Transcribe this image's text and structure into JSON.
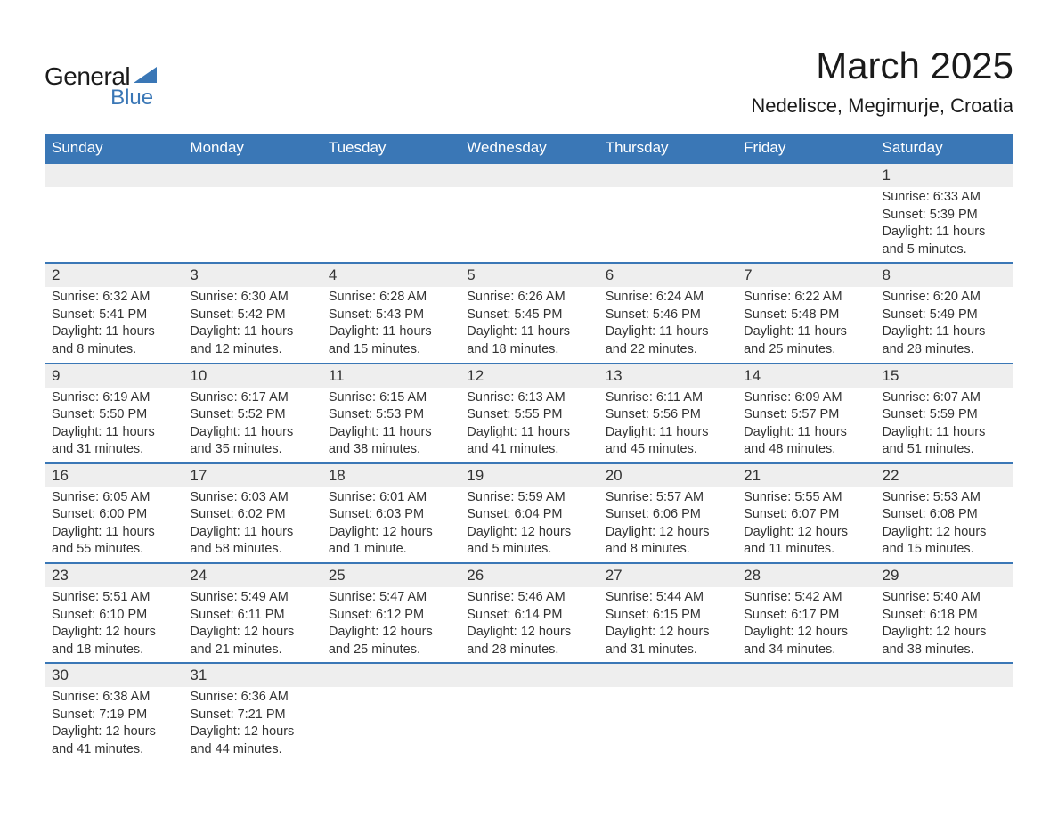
{
  "logo": {
    "text1": "General",
    "text2": "Blue",
    "triangle_color": "#3a77b6"
  },
  "title": "March 2025",
  "location": "Nedelisce, Megimurje, Croatia",
  "colors": {
    "header_bg": "#3a77b6",
    "header_fg": "#ffffff",
    "daynum_bg": "#eeeeee",
    "rule": "#3a77b6",
    "text": "#333333",
    "page_bg": "#ffffff"
  },
  "typography": {
    "title_fontsize": 42,
    "location_fontsize": 22,
    "dayheader_fontsize": 17,
    "daynum_fontsize": 17,
    "detail_fontsize": 14.5
  },
  "day_headers": [
    "Sunday",
    "Monday",
    "Tuesday",
    "Wednesday",
    "Thursday",
    "Friday",
    "Saturday"
  ],
  "weeks": [
    [
      null,
      null,
      null,
      null,
      null,
      null,
      {
        "n": "1",
        "sr": "6:33 AM",
        "ss": "5:39 PM",
        "dl": "11 hours and 5 minutes."
      }
    ],
    [
      {
        "n": "2",
        "sr": "6:32 AM",
        "ss": "5:41 PM",
        "dl": "11 hours and 8 minutes."
      },
      {
        "n": "3",
        "sr": "6:30 AM",
        "ss": "5:42 PM",
        "dl": "11 hours and 12 minutes."
      },
      {
        "n": "4",
        "sr": "6:28 AM",
        "ss": "5:43 PM",
        "dl": "11 hours and 15 minutes."
      },
      {
        "n": "5",
        "sr": "6:26 AM",
        "ss": "5:45 PM",
        "dl": "11 hours and 18 minutes."
      },
      {
        "n": "6",
        "sr": "6:24 AM",
        "ss": "5:46 PM",
        "dl": "11 hours and 22 minutes."
      },
      {
        "n": "7",
        "sr": "6:22 AM",
        "ss": "5:48 PM",
        "dl": "11 hours and 25 minutes."
      },
      {
        "n": "8",
        "sr": "6:20 AM",
        "ss": "5:49 PM",
        "dl": "11 hours and 28 minutes."
      }
    ],
    [
      {
        "n": "9",
        "sr": "6:19 AM",
        "ss": "5:50 PM",
        "dl": "11 hours and 31 minutes."
      },
      {
        "n": "10",
        "sr": "6:17 AM",
        "ss": "5:52 PM",
        "dl": "11 hours and 35 minutes."
      },
      {
        "n": "11",
        "sr": "6:15 AM",
        "ss": "5:53 PM",
        "dl": "11 hours and 38 minutes."
      },
      {
        "n": "12",
        "sr": "6:13 AM",
        "ss": "5:55 PM",
        "dl": "11 hours and 41 minutes."
      },
      {
        "n": "13",
        "sr": "6:11 AM",
        "ss": "5:56 PM",
        "dl": "11 hours and 45 minutes."
      },
      {
        "n": "14",
        "sr": "6:09 AM",
        "ss": "5:57 PM",
        "dl": "11 hours and 48 minutes."
      },
      {
        "n": "15",
        "sr": "6:07 AM",
        "ss": "5:59 PM",
        "dl": "11 hours and 51 minutes."
      }
    ],
    [
      {
        "n": "16",
        "sr": "6:05 AM",
        "ss": "6:00 PM",
        "dl": "11 hours and 55 minutes."
      },
      {
        "n": "17",
        "sr": "6:03 AM",
        "ss": "6:02 PM",
        "dl": "11 hours and 58 minutes."
      },
      {
        "n": "18",
        "sr": "6:01 AM",
        "ss": "6:03 PM",
        "dl": "12 hours and 1 minute."
      },
      {
        "n": "19",
        "sr": "5:59 AM",
        "ss": "6:04 PM",
        "dl": "12 hours and 5 minutes."
      },
      {
        "n": "20",
        "sr": "5:57 AM",
        "ss": "6:06 PM",
        "dl": "12 hours and 8 minutes."
      },
      {
        "n": "21",
        "sr": "5:55 AM",
        "ss": "6:07 PM",
        "dl": "12 hours and 11 minutes."
      },
      {
        "n": "22",
        "sr": "5:53 AM",
        "ss": "6:08 PM",
        "dl": "12 hours and 15 minutes."
      }
    ],
    [
      {
        "n": "23",
        "sr": "5:51 AM",
        "ss": "6:10 PM",
        "dl": "12 hours and 18 minutes."
      },
      {
        "n": "24",
        "sr": "5:49 AM",
        "ss": "6:11 PM",
        "dl": "12 hours and 21 minutes."
      },
      {
        "n": "25",
        "sr": "5:47 AM",
        "ss": "6:12 PM",
        "dl": "12 hours and 25 minutes."
      },
      {
        "n": "26",
        "sr": "5:46 AM",
        "ss": "6:14 PM",
        "dl": "12 hours and 28 minutes."
      },
      {
        "n": "27",
        "sr": "5:44 AM",
        "ss": "6:15 PM",
        "dl": "12 hours and 31 minutes."
      },
      {
        "n": "28",
        "sr": "5:42 AM",
        "ss": "6:17 PM",
        "dl": "12 hours and 34 minutes."
      },
      {
        "n": "29",
        "sr": "5:40 AM",
        "ss": "6:18 PM",
        "dl": "12 hours and 38 minutes."
      }
    ],
    [
      {
        "n": "30",
        "sr": "6:38 AM",
        "ss": "7:19 PM",
        "dl": "12 hours and 41 minutes."
      },
      {
        "n": "31",
        "sr": "6:36 AM",
        "ss": "7:21 PM",
        "dl": "12 hours and 44 minutes."
      },
      null,
      null,
      null,
      null,
      null
    ]
  ],
  "labels": {
    "sunrise": "Sunrise: ",
    "sunset": "Sunset: ",
    "daylight": "Daylight: "
  }
}
